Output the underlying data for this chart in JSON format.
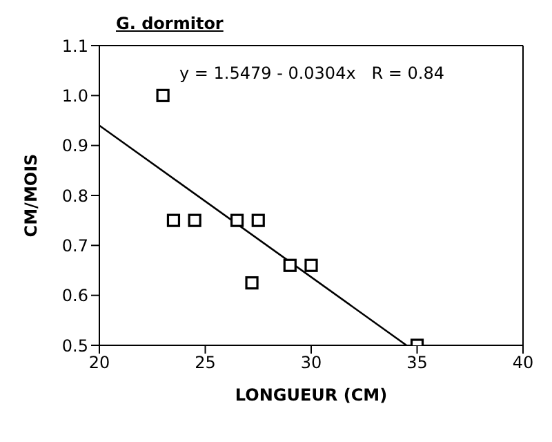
{
  "chart_data": {
    "type": "scatter",
    "title": "G. dormitor",
    "xlabel": "LONGUEUR (CM)",
    "ylabel": "CM/MOIS",
    "annotations": [
      "y = 1.5479 - 0.0304x   R = 0.84"
    ],
    "xlim": [
      20,
      40
    ],
    "xticks": [
      20,
      25,
      30,
      35,
      40
    ],
    "ylim": [
      0.5,
      1.1
    ],
    "yticks": [
      0.5,
      0.6,
      0.7,
      0.8,
      0.9,
      {
        "value": 1,
        "label": "1.0"
      },
      1.1
    ],
    "grid": false,
    "legend": false,
    "marker": "square",
    "series": [
      {
        "color": "#000000",
        "x": [
          23,
          23.5,
          24.5,
          26.5,
          27.5,
          27.2,
          29,
          30,
          35
        ],
        "values": [
          1.0,
          0.75,
          0.75,
          0.75,
          0.75,
          0.625,
          0.66,
          0.66,
          0.5
        ]
      },
      {
        "type": "line",
        "color": "#000000",
        "marker": "none",
        "line_style": "solid",
        "x": [
          20,
          34.5
        ],
        "values": [
          0.94,
          0.5
        ]
      }
    ]
  }
}
